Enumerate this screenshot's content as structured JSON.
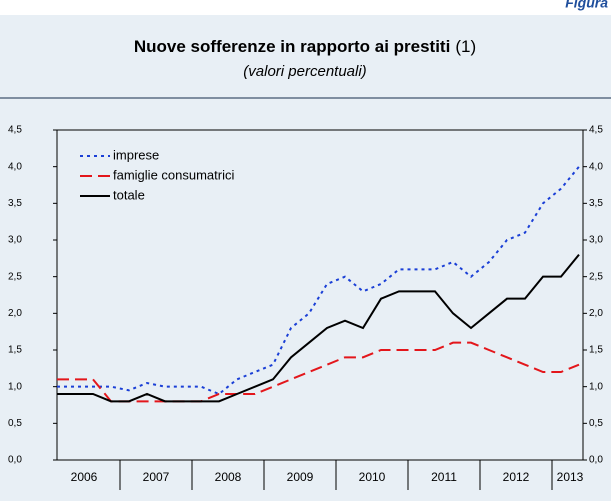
{
  "header": {
    "label": "Figura"
  },
  "chart_data": {
    "type": "line",
    "title": "Nuove sofferenze in rapporto ai prestiti",
    "title_note": "(1)",
    "subtitle": "(valori percentuali)",
    "categories": [
      "2006",
      null,
      null,
      null,
      "2007",
      null,
      null,
      null,
      "2008",
      null,
      null,
      null,
      "2009",
      null,
      null,
      null,
      "2010",
      null,
      null,
      null,
      "2011",
      null,
      null,
      null,
      "2012",
      null,
      null,
      null,
      "2013",
      null
    ],
    "series": [
      {
        "name": "imprese",
        "color": "#1a3fd6",
        "dash": "dotted",
        "values": [
          1.0,
          1.0,
          1.0,
          1.0,
          0.95,
          1.05,
          1.0,
          1.0,
          1.0,
          0.9,
          1.1,
          1.2,
          1.3,
          1.8,
          2.0,
          2.4,
          2.5,
          2.3,
          2.4,
          2.6,
          2.6,
          2.6,
          2.7,
          2.5,
          2.7,
          3.0,
          3.1,
          3.5,
          3.7,
          4.0
        ]
      },
      {
        "name": "famiglie consumatrici",
        "color": "#e3161b",
        "dash": "dashed",
        "values": [
          1.1,
          1.1,
          1.1,
          0.8,
          0.8,
          0.8,
          0.8,
          0.8,
          0.8,
          0.9,
          0.9,
          0.9,
          1.0,
          1.1,
          1.2,
          1.3,
          1.4,
          1.4,
          1.5,
          1.5,
          1.5,
          1.5,
          1.6,
          1.6,
          1.5,
          1.4,
          1.3,
          1.2,
          1.2,
          1.3
        ]
      },
      {
        "name": "totale",
        "color": "#000000",
        "dash": "solid",
        "values": [
          0.9,
          0.9,
          0.9,
          0.8,
          0.8,
          0.9,
          0.8,
          0.8,
          0.8,
          0.8,
          0.9,
          1.0,
          1.1,
          1.4,
          1.6,
          1.8,
          1.9,
          1.8,
          2.2,
          2.3,
          2.3,
          2.3,
          2.0,
          1.8,
          2.0,
          2.2,
          2.2,
          2.5,
          2.5,
          2.8
        ]
      }
    ],
    "ylim": [
      0,
      4.5
    ],
    "yticks": [
      {
        "value": 0,
        "label": "0,0"
      },
      {
        "value": 0.5,
        "label": "0,5"
      },
      {
        "value": 1,
        "label": "1,0"
      },
      {
        "value": 1.5,
        "label": "1,5"
      },
      {
        "value": 2,
        "label": "2,0"
      },
      {
        "value": 2.5,
        "label": "2,5"
      },
      {
        "value": 3,
        "label": "3,0"
      },
      {
        "value": 3.5,
        "label": "3,5"
      },
      {
        "value": 4,
        "label": "4,0"
      },
      {
        "value": 4.5,
        "label": "4,5"
      }
    ],
    "y2lim": [
      0,
      4.5
    ],
    "y2ticks": [
      {
        "value": 0,
        "label": "0,0"
      },
      {
        "value": 0.5,
        "label": "0,5"
      },
      {
        "value": 1,
        "label": "1,0"
      },
      {
        "value": 1.5,
        "label": "1,5"
      },
      {
        "value": 2,
        "label": "2,0"
      },
      {
        "value": 2.5,
        "label": "2,5"
      },
      {
        "value": 3,
        "label": "3,0"
      },
      {
        "value": 3.5,
        "label": "3,5"
      },
      {
        "value": 4,
        "label": "4,0"
      },
      {
        "value": 4.5,
        "label": "4,5"
      }
    ],
    "grid": false,
    "legend": "top-left"
  }
}
